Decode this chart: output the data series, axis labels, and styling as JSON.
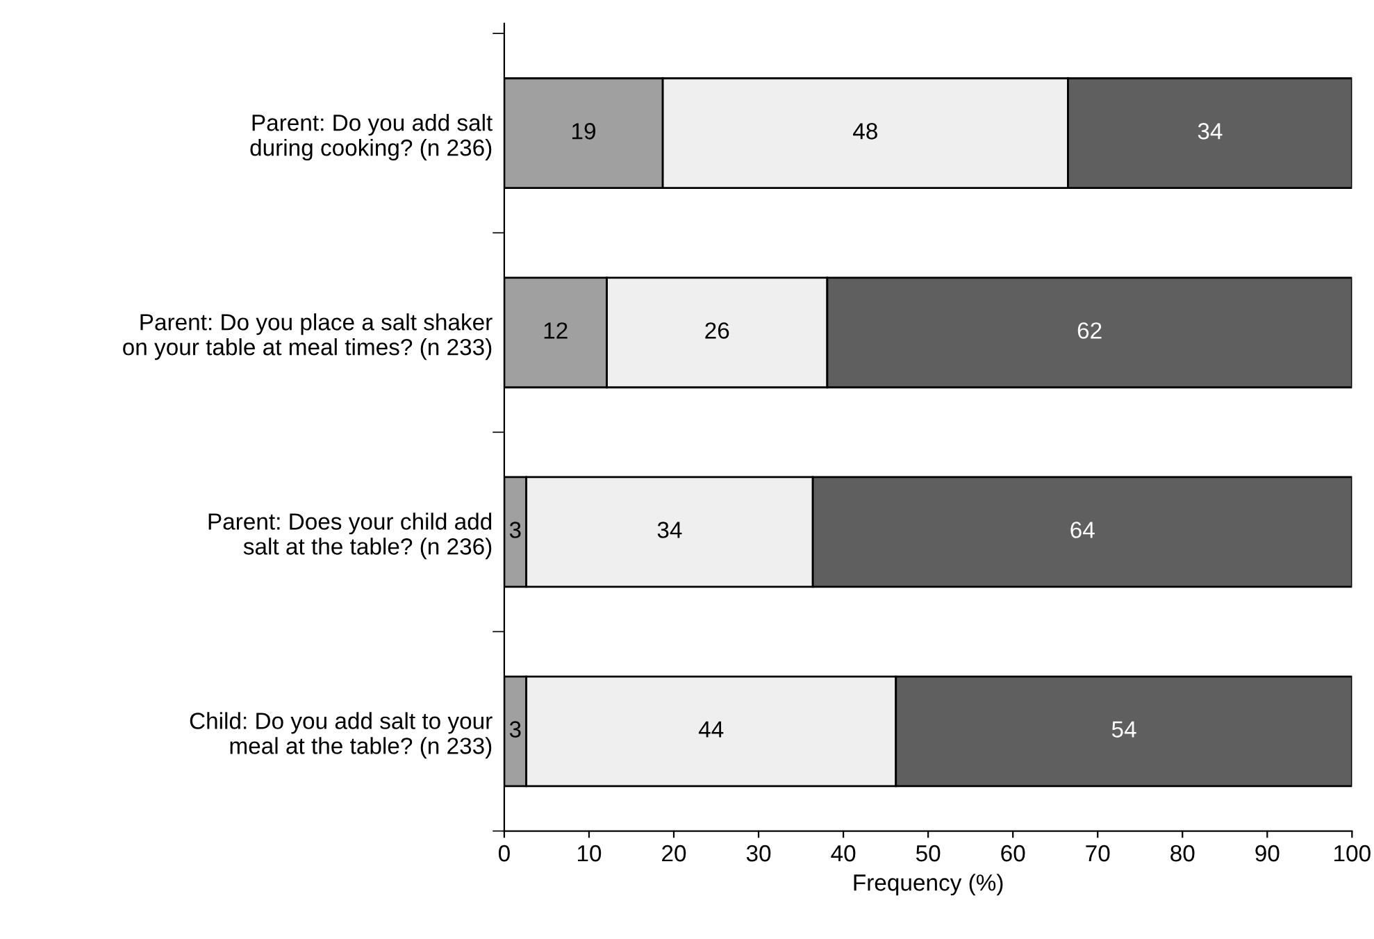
{
  "chart_data": {
    "type": "bar",
    "orientation": "horizontal",
    "stacked": true,
    "categories": [
      "Parent: Do you add salt\nduring cooking? (n 236)",
      "Parent: Do you place a salt shaker\non your table at meal times? (n 233)",
      "Parent: Does your child add\nsalt at the table? (n 236)",
      "Child: Do you add salt to your\nmeal at the table? (n 233)"
    ],
    "series": [
      {
        "color": "#a0a0a0",
        "values": [
          18.7,
          12.1,
          2.6,
          2.6
        ],
        "value_labels": [
          "19",
          "12",
          "3",
          "3"
        ]
      },
      {
        "color": "#efefef",
        "values": [
          47.8,
          26.0,
          33.8,
          43.6
        ],
        "value_labels": [
          "48",
          "26",
          "34",
          "44"
        ]
      },
      {
        "color": "#5f5f5f",
        "values": [
          33.5,
          61.9,
          63.6,
          53.8
        ],
        "value_labels": [
          "34",
          "62",
          "64",
          "54"
        ]
      }
    ],
    "xlabel": "Frequency (%)",
    "xlim": [
      0,
      100
    ],
    "xticks": [
      0,
      10,
      20,
      30,
      40,
      50,
      60,
      70,
      80,
      90,
      100
    ],
    "grid": false,
    "legend": false
  }
}
